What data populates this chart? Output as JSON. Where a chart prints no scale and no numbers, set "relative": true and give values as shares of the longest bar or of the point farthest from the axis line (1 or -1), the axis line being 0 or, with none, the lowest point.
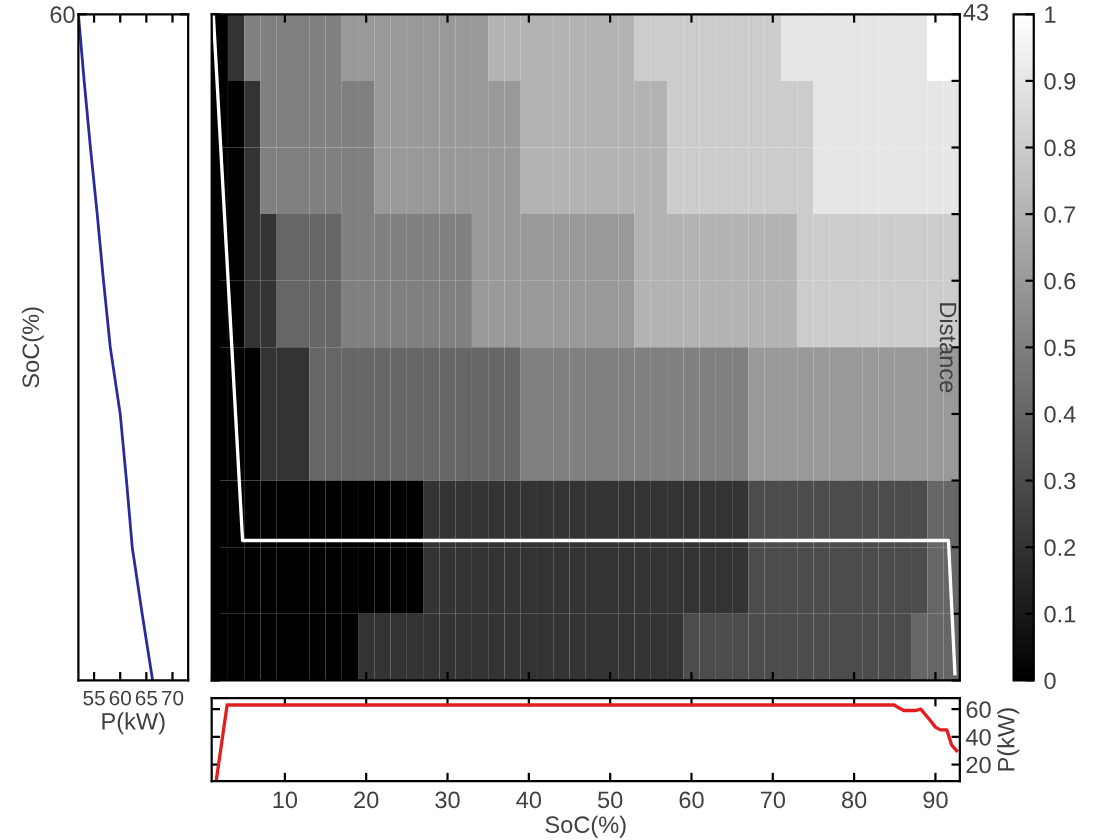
{
  "chart_data": [
    {
      "type": "line",
      "orientation": "horizontal",
      "xlabel": "P(kW)",
      "ylabel": "SoC(%)",
      "xlim": [
        52,
        73
      ],
      "xticks": [
        55,
        60,
        65,
        70
      ],
      "categories": [
        "60",
        null,
        null,
        null,
        null,
        null,
        null,
        null,
        null,
        null,
        null
      ],
      "series": [
        {
          "color": "#2a2a9c",
          "values": [
            52,
            53.1,
            54.3,
            55.6,
            56.8,
            58.1,
            60.0,
            61.2,
            62.3,
            64.2,
            66.2
          ]
        }
      ]
    },
    {
      "type": "heatmap",
      "ylabel": "Distance",
      "tick_labels": "y",
      "xlim": [
        1,
        93
      ],
      "xticks": [
        10,
        20,
        30,
        40,
        50,
        60,
        70,
        80,
        90
      ],
      "relative": true,
      "annotations": [
        "43"
      ],
      "clim": [
        0,
        1
      ],
      "cticks": [
        0,
        0.1,
        0.2,
        0.3,
        0.4,
        0.5,
        0.6,
        0.7,
        0.8,
        0.9,
        1
      ],
      "x": [
        2,
        4,
        6,
        8,
        10,
        12,
        14,
        16,
        18,
        20,
        22,
        24,
        26,
        28,
        30,
        32,
        34,
        36,
        38,
        40,
        42,
        44,
        46,
        48,
        50,
        52,
        54,
        56,
        58,
        60,
        62,
        64,
        66,
        68,
        70,
        72,
        74,
        76,
        78,
        80,
        82,
        84,
        86,
        88,
        90,
        92
      ],
      "cells": [
        [
          0,
          0.2,
          0.5,
          0.5,
          0.5,
          0.5,
          0.5,
          0.5,
          0.6,
          0.6,
          0.6,
          0.6,
          0.6,
          0.6,
          0.6,
          0.6,
          0.6,
          0.7,
          0.7,
          0.7,
          0.7,
          0.7,
          0.7,
          0.7,
          0.7,
          0.7,
          0.8,
          0.8,
          0.8,
          0.8,
          0.8,
          0.8,
          0.8,
          0.8,
          0.8,
          0.9,
          0.9,
          0.9,
          0.9,
          0.9,
          0.9,
          0.9,
          0.9,
          0.9,
          1,
          1
        ],
        [
          0,
          0,
          0.2,
          0.5,
          0.5,
          0.5,
          0.5,
          0.5,
          0.5,
          0.5,
          0.6,
          0.6,
          0.6,
          0.6,
          0.6,
          0.6,
          0.6,
          0.6,
          0.6,
          0.7,
          0.7,
          0.7,
          0.7,
          0.7,
          0.7,
          0.7,
          0.7,
          0.7,
          0.8,
          0.8,
          0.8,
          0.8,
          0.8,
          0.8,
          0.8,
          0.8,
          0.8,
          0.9,
          0.9,
          0.9,
          0.9,
          0.9,
          0.9,
          0.9,
          0.9,
          0.9
        ],
        [
          0,
          0,
          0.2,
          0.5,
          0.5,
          0.5,
          0.5,
          0.5,
          0.5,
          0.5,
          0.6,
          0.6,
          0.6,
          0.6,
          0.6,
          0.6,
          0.6,
          0.6,
          0.6,
          0.7,
          0.7,
          0.7,
          0.7,
          0.7,
          0.7,
          0.7,
          0.7,
          0.7,
          0.8,
          0.8,
          0.8,
          0.8,
          0.8,
          0.8,
          0.8,
          0.8,
          0.8,
          0.9,
          0.9,
          0.9,
          0.9,
          0.9,
          0.9,
          0.9,
          0.9,
          0.9
        ],
        [
          0,
          0,
          0.2,
          0.2,
          0.4,
          0.4,
          0.4,
          0.4,
          0.5,
          0.5,
          0.5,
          0.5,
          0.5,
          0.5,
          0.5,
          0.5,
          0.6,
          0.6,
          0.6,
          0.6,
          0.6,
          0.6,
          0.6,
          0.6,
          0.6,
          0.6,
          0.7,
          0.7,
          0.7,
          0.7,
          0.7,
          0.7,
          0.7,
          0.7,
          0.7,
          0.7,
          0.8,
          0.8,
          0.8,
          0.8,
          0.8,
          0.8,
          0.8,
          0.8,
          0.8,
          0.8
        ],
        [
          0,
          0,
          0.2,
          0.2,
          0.4,
          0.4,
          0.4,
          0.4,
          0.5,
          0.5,
          0.5,
          0.5,
          0.5,
          0.5,
          0.5,
          0.5,
          0.6,
          0.6,
          0.6,
          0.6,
          0.6,
          0.6,
          0.6,
          0.6,
          0.6,
          0.6,
          0.7,
          0.7,
          0.7,
          0.7,
          0.7,
          0.7,
          0.7,
          0.7,
          0.7,
          0.7,
          0.8,
          0.8,
          0.8,
          0.8,
          0.8,
          0.8,
          0.8,
          0.8,
          0.8,
          0.8
        ],
        [
          0,
          0,
          0,
          0.2,
          0.2,
          0.2,
          0.4,
          0.4,
          0.4,
          0.4,
          0.4,
          0.4,
          0.4,
          0.4,
          0.4,
          0.4,
          0.4,
          0.4,
          0.4,
          0.5,
          0.5,
          0.5,
          0.5,
          0.5,
          0.5,
          0.5,
          0.5,
          0.5,
          0.5,
          0.5,
          0.5,
          0.5,
          0.5,
          0.6,
          0.6,
          0.6,
          0.6,
          0.6,
          0.6,
          0.6,
          0.6,
          0.6,
          0.6,
          0.6,
          0.6,
          0.6
        ],
        [
          0,
          0,
          0,
          0.2,
          0.2,
          0.2,
          0.4,
          0.4,
          0.4,
          0.4,
          0.4,
          0.4,
          0.4,
          0.4,
          0.4,
          0.4,
          0.4,
          0.4,
          0.4,
          0.5,
          0.5,
          0.5,
          0.5,
          0.5,
          0.5,
          0.5,
          0.5,
          0.5,
          0.5,
          0.5,
          0.5,
          0.5,
          0.5,
          0.6,
          0.6,
          0.6,
          0.6,
          0.6,
          0.6,
          0.6,
          0.6,
          0.6,
          0.6,
          0.6,
          0.6,
          0.6
        ],
        [
          0,
          0,
          0,
          0,
          0,
          0,
          0,
          0,
          0,
          0,
          0,
          0,
          0,
          0.2,
          0.2,
          0.2,
          0.2,
          0.2,
          0.2,
          0.2,
          0.2,
          0.2,
          0.2,
          0.2,
          0.2,
          0.2,
          0.2,
          0.2,
          0.2,
          0.2,
          0.2,
          0.2,
          0.2,
          0.3,
          0.3,
          0.3,
          0.3,
          0.3,
          0.3,
          0.3,
          0.3,
          0.3,
          0.3,
          0.3,
          0.4,
          0.4
        ],
        [
          0,
          0,
          0,
          0,
          0,
          0,
          0,
          0,
          0,
          0,
          0,
          0,
          0,
          0.2,
          0.2,
          0.2,
          0.2,
          0.2,
          0.2,
          0.2,
          0.2,
          0.2,
          0.2,
          0.2,
          0.2,
          0.2,
          0.2,
          0.2,
          0.2,
          0.2,
          0.2,
          0.2,
          0.2,
          0.3,
          0.3,
          0.3,
          0.3,
          0.3,
          0.3,
          0.3,
          0.3,
          0.3,
          0.3,
          0.3,
          0.4,
          0.4
        ],
        [
          0,
          0,
          0,
          0,
          0,
          0,
          0,
          0,
          0,
          0.2,
          0.2,
          0.2,
          0.2,
          0.2,
          0.2,
          0.2,
          0.2,
          0.2,
          0.2,
          0.2,
          0.2,
          0.2,
          0.2,
          0.2,
          0.2,
          0.2,
          0.2,
          0.2,
          0.2,
          0.3,
          0.3,
          0.3,
          0.3,
          0.3,
          0.3,
          0.3,
          0.3,
          0.3,
          0.3,
          0.3,
          0.3,
          0.3,
          0.3,
          0.4,
          0.4,
          0.4
        ]
      ],
      "series": [
        {
          "type": "line",
          "color": "#ffffff",
          "x": [
            1.2,
            4.8,
            91.6,
            92.4
          ],
          "values": [
            1,
            0.21,
            0.21,
            0.01
          ]
        }
      ]
    },
    {
      "type": "line",
      "xlabel": "SoC(%)",
      "ylabel": "P(kW)",
      "xlim": [
        1,
        93
      ],
      "xticks": [
        10,
        20,
        30,
        40,
        50,
        60,
        70,
        80,
        90
      ],
      "ylim": [
        8,
        68
      ],
      "yticks": [
        20,
        40,
        60
      ],
      "series": [
        {
          "color": "#e02020",
          "x": [
            1.6,
            2.9,
            84.9,
            86.1,
            87.5,
            88.2,
            89.2,
            90.0,
            90.6,
            91.4,
            92.0,
            92.6
          ],
          "values": [
            10,
            63,
            63,
            59,
            59,
            60,
            53,
            47,
            45,
            45,
            34,
            30
          ]
        }
      ]
    }
  ]
}
